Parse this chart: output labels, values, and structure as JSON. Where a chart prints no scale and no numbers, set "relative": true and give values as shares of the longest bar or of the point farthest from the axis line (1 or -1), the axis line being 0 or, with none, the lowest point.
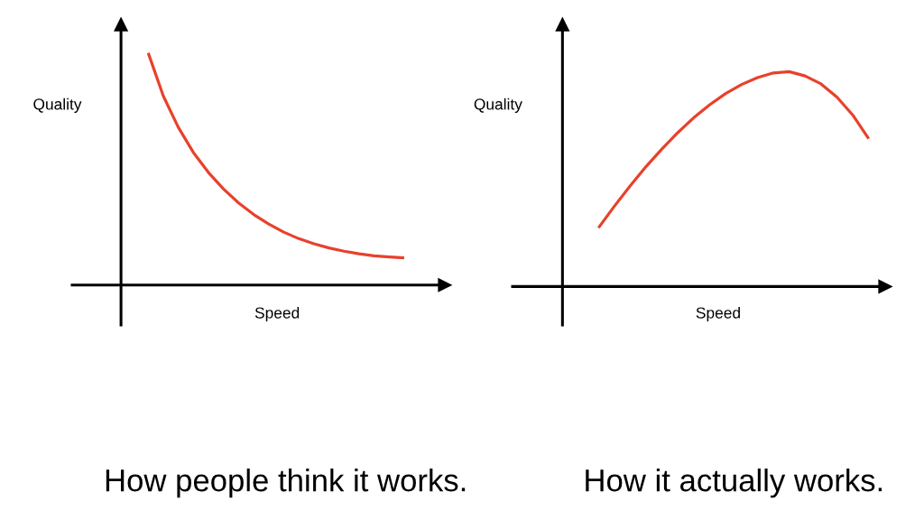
{
  "chart_data": [
    {
      "type": "line",
      "title": "How people think it works.",
      "xlabel": "Speed",
      "ylabel": "Quality",
      "relative": true,
      "line_style": "solid",
      "categories": [
        null,
        null,
        null,
        null,
        null,
        null,
        null,
        null,
        null,
        null,
        null,
        null,
        null,
        null,
        null,
        null,
        null,
        null
      ],
      "series": [
        {
          "color": "#e8412c",
          "values": [
            1.0,
            0.815,
            0.679,
            0.571,
            0.485,
            0.414,
            0.354,
            0.304,
            0.263,
            0.228,
            0.2,
            0.178,
            0.16,
            0.146,
            0.135,
            0.126,
            0.121,
            0.117
          ]
        }
      ]
    },
    {
      "type": "line",
      "title": "How it actually works.",
      "xlabel": "Speed",
      "ylabel": "Quality",
      "relative": true,
      "line_style": "solid",
      "categories": [
        null,
        null,
        null,
        null,
        null,
        null,
        null,
        null,
        null,
        null,
        null,
        null,
        null,
        null,
        null,
        null,
        null,
        null
      ],
      "series": [
        {
          "color": "#e8412c",
          "values": [
            0.273,
            0.374,
            0.469,
            0.559,
            0.641,
            0.717,
            0.786,
            0.846,
            0.898,
            0.94,
            0.972,
            0.994,
            1.0,
            0.98,
            0.943,
            0.882,
            0.798,
            0.688
          ]
        }
      ]
    }
  ]
}
